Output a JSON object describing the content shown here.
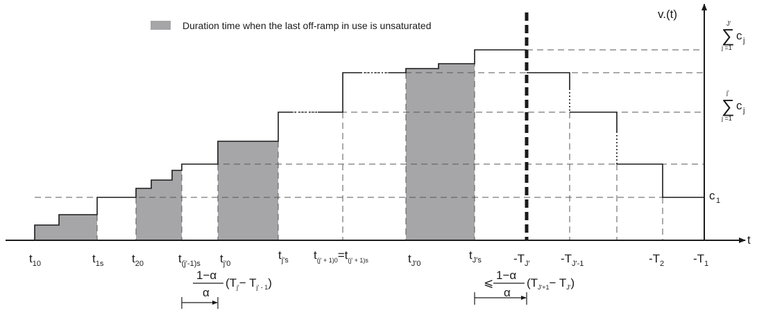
{
  "colors": {
    "shade": "#a6a6a8",
    "line": "#1a1a1a",
    "grid": "#555555"
  },
  "legend": {
    "text": "Duration time when the last off-ramp in use is unsaturated"
  },
  "axis": {
    "y_main": "v.(t)",
    "x_main": "t"
  },
  "x_labels": {
    "t10": {
      "main": "t",
      "sub": "10"
    },
    "t1s": {
      "main": "t",
      "sub": "1s"
    },
    "t20": {
      "main": "t",
      "sub": "20"
    },
    "tj1s": {
      "main": "t",
      "sub": "(j'-1)s"
    },
    "tj0": {
      "main": "t",
      "sub": "j'0"
    },
    "tjs": {
      "main": "t",
      "sub": "j's"
    },
    "teq": {
      "main1": "t",
      "sub1": "(j' + 1)0",
      "eq": "=t",
      "sub2": "(j' + 1)s"
    },
    "tJ0": {
      "main": "t",
      "sub": "J'0"
    },
    "tJs": {
      "main": "t",
      "sub": "J's"
    },
    "TJ": {
      "main": "-T",
      "sub": "J'"
    },
    "TJ1": {
      "main": "-T",
      "sub": "J'-1"
    },
    "T2": {
      "main": "-T",
      "sub": "2"
    },
    "T1": {
      "main": "-T",
      "sub": "1"
    }
  },
  "y_labels": {
    "sumJ": {
      "top": "J'",
      "sigma": "∑",
      "bottom": "j =1",
      "c": "c",
      "csub": "j"
    },
    "sumj": {
      "top": "j'",
      "sigma": "∑",
      "bottom": "j =1",
      "c": "c",
      "csub": "j"
    },
    "c1": {
      "c": "c",
      "csub": "1"
    }
  },
  "formula_left": {
    "num": "1−α",
    "den": "α",
    "open": "(T",
    "sub1": "j'",
    "minus": "− T",
    "sub2": "j' - 1",
    "close": ")"
  },
  "formula_right": {
    "leq": "⩽",
    "num": "1−α",
    "den": "α",
    "open": "(T",
    "sub1": "J'+1",
    "minus": "− T",
    "sub2": "J'",
    "close": ")"
  }
}
